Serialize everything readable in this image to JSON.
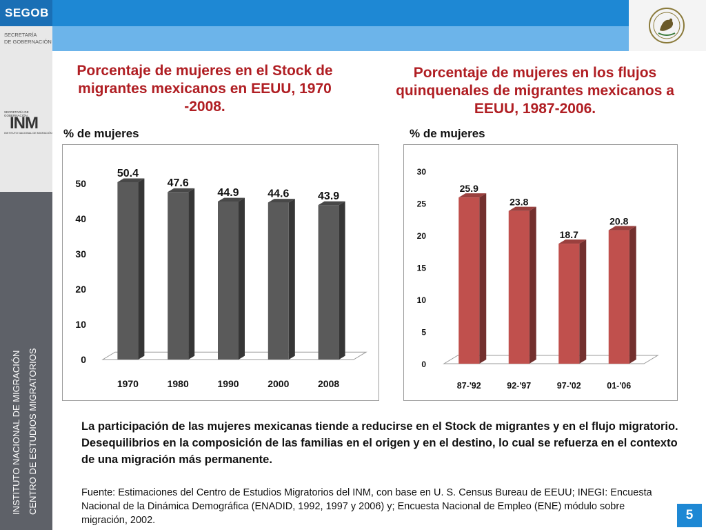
{
  "header": {
    "brand": "SEGOB",
    "secretaria_line1": "SECRETARÍA",
    "secretaria_line2": "DE GOBERNACIÓN"
  },
  "inm_logo": {
    "top_text": "SECRETARÍA DE GOBERNACIÓN",
    "mark": "INM",
    "bottom_text": "INSTITUTO NACIONAL DE MIGRACIÓN"
  },
  "sidebar": {
    "line1": "INSTITUTO NACIONAL DE MIGRACIÓN",
    "line2": "CENTRO DE ESTUDIOS MIGRATORIOS"
  },
  "chart_data": [
    {
      "type": "bar",
      "title": "Porcentaje de mujeres en el Stock de migrantes mexicanos en EEUU, 1970 -2008.",
      "ylabel": "% de mujeres",
      "categories": [
        "1970",
        "1980",
        "1990",
        "2000",
        "2008"
      ],
      "values": [
        50.4,
        47.6,
        44.9,
        44.6,
        43.9
      ],
      "value_labels": [
        "50.4",
        "47.6",
        "44.9",
        "44.6",
        "43.9"
      ],
      "yticks": [
        "0",
        "10",
        "20",
        "30",
        "40",
        "50"
      ],
      "ylim": [
        0,
        50
      ],
      "color": "#5a5a5a",
      "grid": false
    },
    {
      "type": "bar",
      "title": "Porcentaje de mujeres en los flujos quinquenales de migrantes mexicanos a EEUU, 1987-2006.",
      "ylabel": "% de mujeres",
      "categories": [
        "87-'92",
        "92-'97",
        "97-'02",
        "01-'06"
      ],
      "values": [
        25.9,
        23.8,
        18.7,
        20.8
      ],
      "value_labels": [
        "25.9",
        "23.8",
        "18.7",
        "20.8"
      ],
      "yticks": [
        "0",
        "5",
        "10",
        "15",
        "20",
        "25",
        "30"
      ],
      "ylim": [
        0,
        30
      ],
      "color": "#c0504d",
      "grid": false
    }
  ],
  "summary": "La participación de las mujeres mexicanas tiende a reducirse en el Stock de migrantes y en el flujo migratorio. Desequilibrios en la composición de las familias en el origen y en el destino, lo cual se refuerza en el contexto de una migración más permanente.",
  "source": "Fuente: Estimaciones del Centro de Estudios Migratorios del INM, con base en U. S. Census Bureau de EEUU; INEGI: Encuesta Nacional de la Dinámica Demográfica (ENADID, 1992, 1997 y 2006) y; Encuesta Nacional de Empleo (ENE) módulo sobre migración, 2002.",
  "page_number": "5",
  "colors": {
    "accent": "#1e88d4",
    "title": "#b01e23"
  }
}
